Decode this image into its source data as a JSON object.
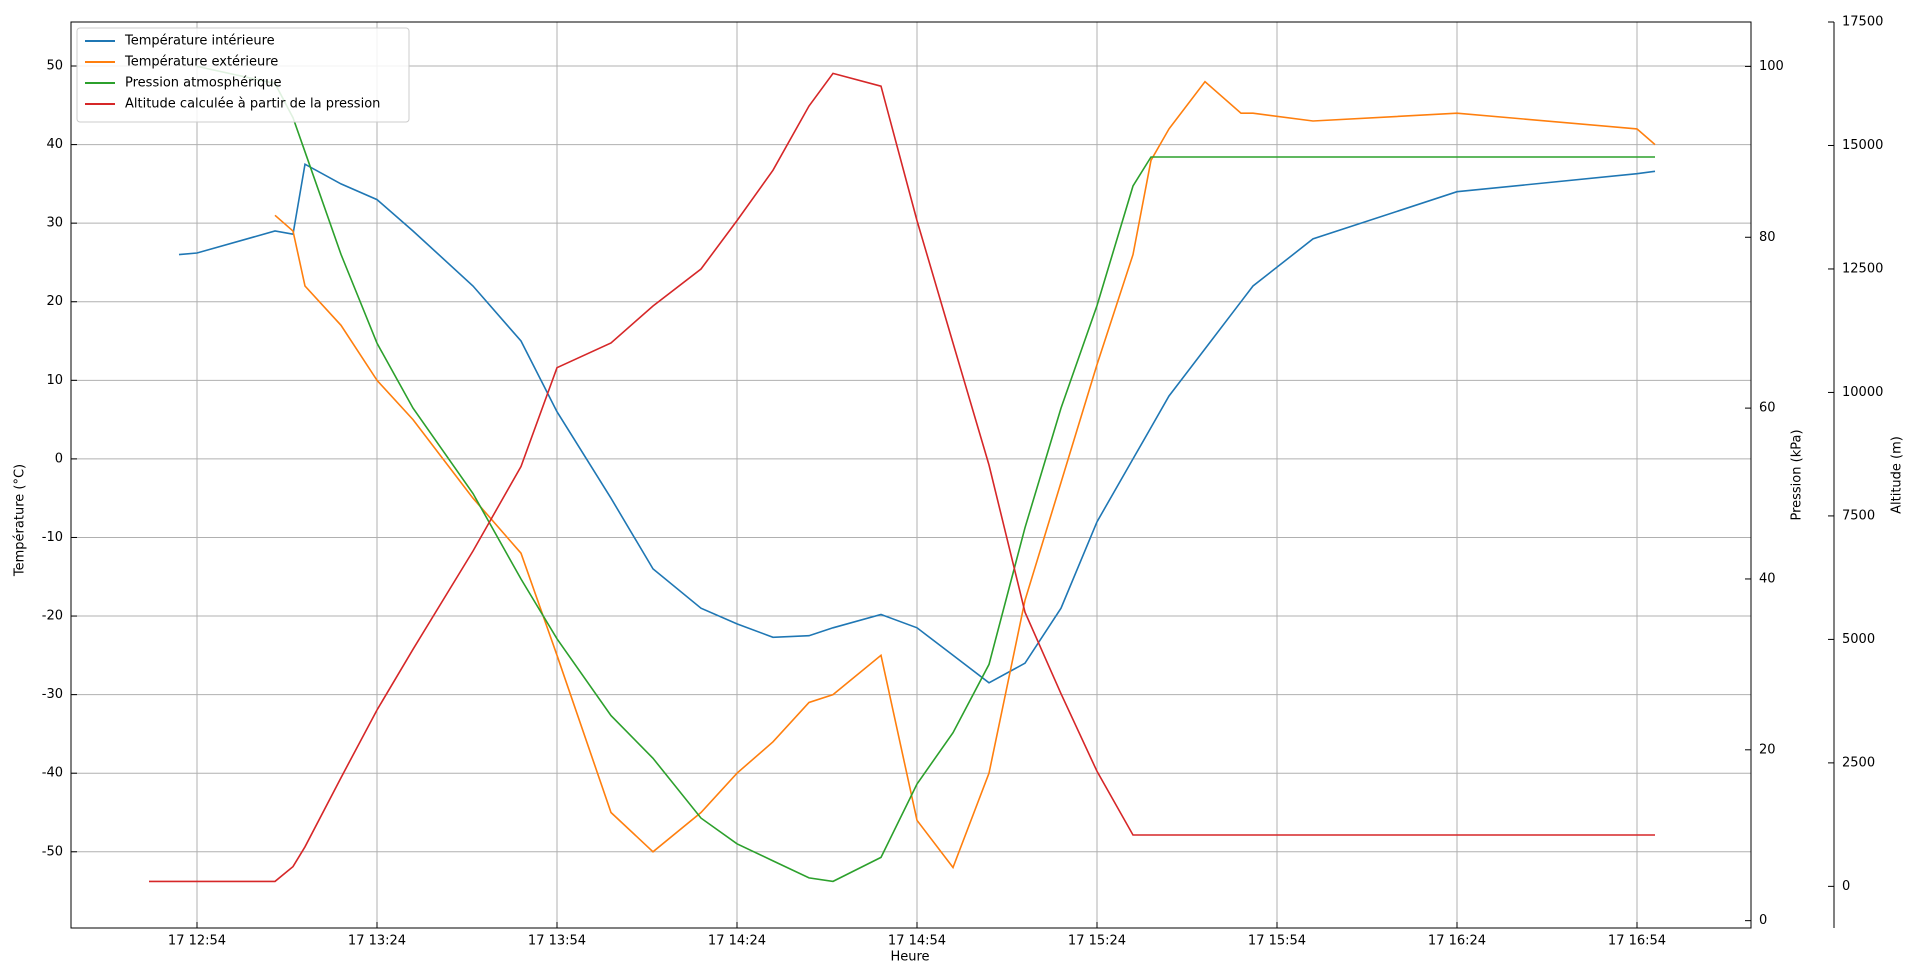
{
  "chart_data": {
    "type": "line",
    "x_label": "Heure",
    "y_label": "Température (°C)",
    "y2_label": "Pression (kPa)",
    "y3_label": "Altitude (m)",
    "x": [
      "17 12:46",
      "17 12:51",
      "17 12:54",
      "17 13:07",
      "17 13:10",
      "17 13:12",
      "17 13:18",
      "17 13:24",
      "17 13:30",
      "17 13:40",
      "17 13:48",
      "17 13:54",
      "17 14:03",
      "17 14:10",
      "17 14:18",
      "17 14:24",
      "17 14:30",
      "17 14:36",
      "17 14:40",
      "17 14:48",
      "17 14:54",
      "17 15:00",
      "17 15:06",
      "17 15:12",
      "17 15:18",
      "17 15:24",
      "17 15:30",
      "17 15:33",
      "17 15:36",
      "17 15:42",
      "17 15:48",
      "17 15:50",
      "17 16:00",
      "17 16:24",
      "17 16:54",
      "17 16:57"
    ],
    "series": [
      {
        "name": "Température intérieure",
        "color": "#1f77b4",
        "values": [
          null,
          26,
          26.2,
          29,
          28.6,
          37.5,
          35,
          33,
          29,
          22,
          15,
          6,
          -5,
          -14,
          -19,
          -21,
          -22.7,
          -22.5,
          -21.5,
          -19.8,
          -21.5,
          -25,
          -28.5,
          -26,
          -19,
          -8,
          0,
          4,
          8,
          14,
          20,
          22,
          28,
          34,
          36.3,
          36.6
        ]
      },
      {
        "name": "Température extérieure",
        "color": "#ff7f0e",
        "values": [
          null,
          null,
          null,
          31,
          29,
          22,
          17,
          10,
          5,
          -5,
          -12,
          -25,
          -45,
          -50,
          -45,
          -40,
          -36,
          -31,
          -30,
          -25,
          -46,
          -52,
          -40,
          -18,
          -3,
          12,
          26,
          38,
          42,
          48,
          44,
          44,
          43,
          44,
          42,
          40
        ]
      },
      {
        "name": "Pression atmosphérique",
        "color": "#2ca02c",
        "axis": "y2",
        "values": [
          null,
          null,
          100,
          98,
          94,
          90,
          78,
          67.6,
          60,
          50,
          40,
          33,
          24,
          19,
          12,
          9,
          7,
          5,
          4.6,
          7.4,
          16,
          22,
          30,
          46,
          60,
          72,
          86,
          89.4,
          89.4,
          89.4,
          89.4,
          89.4,
          89.4,
          89.4,
          89.4,
          89.4
        ]
      },
      {
        "name": "Altitude calculée à partir de la pression",
        "color": "#d62728",
        "axis": "y3",
        "values": [
          100,
          100,
          100,
          100,
          400,
          800,
          2200,
          3570,
          4800,
          6790,
          8500,
          10500,
          11000,
          11750,
          12500,
          13480,
          14500,
          15800,
          16460,
          16200,
          13480,
          11000,
          8530,
          5550,
          3900,
          2330,
          1040,
          1040,
          1040,
          1040,
          1040,
          1040,
          1040,
          1040,
          1040,
          1040
        ]
      }
    ],
    "xlim": [
      "17 12:33",
      "17 17:13"
    ],
    "xticks": [
      "17 12:54",
      "17 13:24",
      "17 13:54",
      "17 14:24",
      "17 14:54",
      "17 15:24",
      "17 15:54",
      "17 16:24",
      "17 16:54"
    ],
    "ylim": [
      -59.7,
      55.6
    ],
    "yticks": [
      -50,
      -40,
      -30,
      -20,
      -10,
      0,
      10,
      20,
      30,
      40,
      50
    ],
    "y2lim": [
      -0.86,
      105.2
    ],
    "y2ticks": [
      0,
      20,
      40,
      60,
      80,
      100
    ],
    "y3lim": [
      -843,
      17500
    ],
    "y3ticks": [
      0,
      2500,
      5000,
      7500,
      10000,
      12500,
      15000,
      17500
    ],
    "grid": true,
    "legend": "upper left"
  }
}
